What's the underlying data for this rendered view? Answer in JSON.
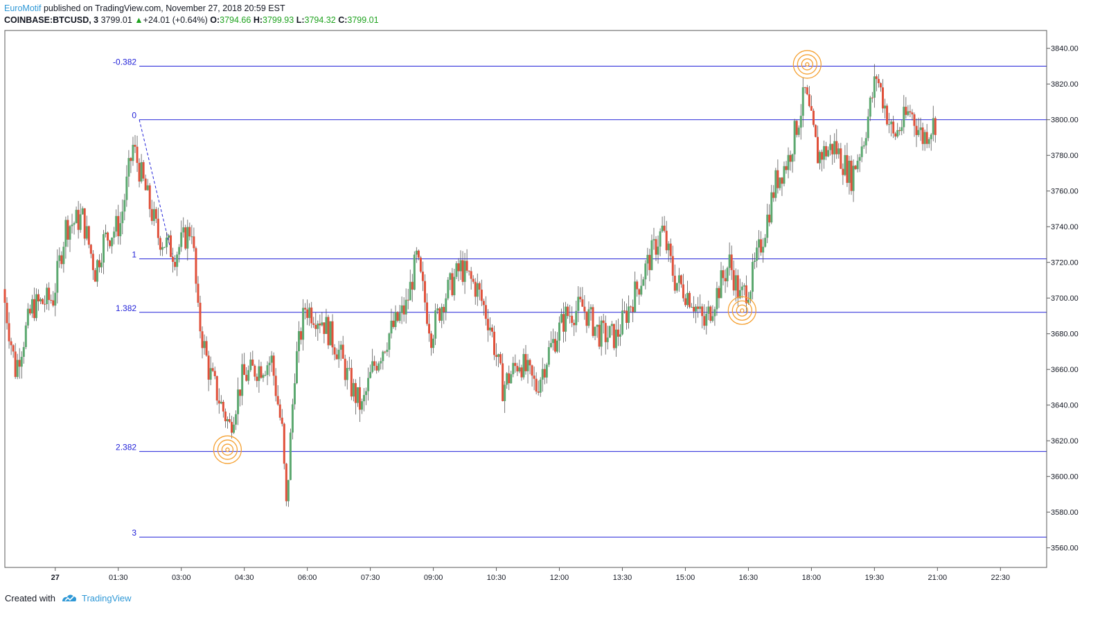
{
  "header": {
    "author": "EuroMotif",
    "published": "published on TradingView.com, November 27, 2018 20:59 EST",
    "symbol": "COINBASE:BTCUSD, 3",
    "last": "3799.01",
    "change_arrow": "▲",
    "change": "+24.01 (+0.64%)",
    "o_label": "O:",
    "o_value": "3794.66",
    "h_label": "H:",
    "h_value": "3799.93",
    "l_label": "L:",
    "l_value": "3794.32",
    "c_label": "C:",
    "c_value": "3799.01"
  },
  "footer": {
    "created_with": "Created with",
    "brand": "TradingView"
  },
  "colors": {
    "up": "#5ba86f",
    "down": "#e0503a",
    "fib": "#2020d8",
    "target": "#f5a030"
  },
  "chart_data": {
    "type": "candlestick",
    "title": "COINBASE:BTCUSD, 3",
    "x_ticks": [
      "27",
      "01:30",
      "03:00",
      "04:30",
      "06:00",
      "07:30",
      "09:00",
      "10:30",
      "12:00",
      "13:30",
      "15:00",
      "16:30",
      "18:00",
      "19:30",
      "21:00",
      "22:30"
    ],
    "x_ticks_hours": [
      0,
      1.5,
      3,
      4.5,
      6,
      7.5,
      9,
      10.5,
      12,
      13.5,
      15,
      16.5,
      18,
      19.5,
      21,
      22.5
    ],
    "y_ticks": [
      "3840.00",
      "3820.00",
      "3800.00",
      "3780.00",
      "3760.00",
      "3740.00",
      "3720.00",
      "3700.00",
      "3680.00",
      "3660.00",
      "3640.00",
      "3620.00",
      "3600.00",
      "3580.00",
      "3560.00"
    ],
    "ylim": [
      3549,
      3850
    ],
    "xlim_hours": [
      -1.2,
      23.6
    ],
    "fib_levels": [
      {
        "label": "-0.382",
        "price": 3830
      },
      {
        "label": "0",
        "price": 3800
      },
      {
        "label": "1",
        "price": 3722
      },
      {
        "label": "1.382",
        "price": 3692
      },
      {
        "label": "2.382",
        "price": 3614
      },
      {
        "label": "3",
        "price": 3566
      }
    ],
    "fib_start_hour": 2.0,
    "fib_anchor_line": {
      "from": {
        "hour": 2.0,
        "price": 3800
      },
      "to": {
        "hour": 2.8,
        "price": 3722
      }
    },
    "targets": [
      {
        "hour": 4.1,
        "price": 3615
      },
      {
        "hour": 16.35,
        "price": 3693
      },
      {
        "hour": 17.9,
        "price": 3831
      }
    ],
    "price_path": [
      {
        "hour": -1.2,
        "price": 3705
      },
      {
        "hour": -0.9,
        "price": 3660
      },
      {
        "hour": -0.5,
        "price": 3695
      },
      {
        "hour": 0.0,
        "price": 3700
      },
      {
        "hour": 0.3,
        "price": 3740
      },
      {
        "hour": 0.7,
        "price": 3745
      },
      {
        "hour": 1.0,
        "price": 3715
      },
      {
        "hour": 1.2,
        "price": 3732
      },
      {
        "hour": 1.6,
        "price": 3742
      },
      {
        "hour": 1.9,
        "price": 3785
      },
      {
        "hour": 2.2,
        "price": 3760
      },
      {
        "hour": 2.5,
        "price": 3735
      },
      {
        "hour": 2.9,
        "price": 3725
      },
      {
        "hour": 3.3,
        "price": 3740
      },
      {
        "hour": 3.45,
        "price": 3690
      },
      {
        "hour": 3.7,
        "price": 3660
      },
      {
        "hour": 4.0,
        "price": 3640
      },
      {
        "hour": 4.2,
        "price": 3628
      },
      {
        "hour": 4.5,
        "price": 3655
      },
      {
        "hour": 4.8,
        "price": 3660
      },
      {
        "hour": 5.2,
        "price": 3665
      },
      {
        "hour": 5.45,
        "price": 3625
      },
      {
        "hour": 5.55,
        "price": 3582
      },
      {
        "hour": 5.75,
        "price": 3660
      },
      {
        "hour": 6.0,
        "price": 3695
      },
      {
        "hour": 6.4,
        "price": 3688
      },
      {
        "hour": 6.8,
        "price": 3670
      },
      {
        "hour": 7.1,
        "price": 3650
      },
      {
        "hour": 7.35,
        "price": 3638
      },
      {
        "hour": 7.6,
        "price": 3660
      },
      {
        "hour": 8.0,
        "price": 3680
      },
      {
        "hour": 8.4,
        "price": 3695
      },
      {
        "hour": 8.65,
        "price": 3722
      },
      {
        "hour": 9.0,
        "price": 3680
      },
      {
        "hour": 9.3,
        "price": 3700
      },
      {
        "hour": 9.7,
        "price": 3717
      },
      {
        "hour": 10.1,
        "price": 3705
      },
      {
        "hour": 10.4,
        "price": 3685
      },
      {
        "hour": 10.7,
        "price": 3650
      },
      {
        "hour": 11.1,
        "price": 3665
      },
      {
        "hour": 11.5,
        "price": 3650
      },
      {
        "hour": 11.8,
        "price": 3670
      },
      {
        "hour": 12.2,
        "price": 3690
      },
      {
        "hour": 12.6,
        "price": 3695
      },
      {
        "hour": 13.0,
        "price": 3680
      },
      {
        "hour": 13.4,
        "price": 3678
      },
      {
        "hour": 13.8,
        "price": 3700
      },
      {
        "hour": 14.2,
        "price": 3722
      },
      {
        "hour": 14.5,
        "price": 3738
      },
      {
        "hour": 14.8,
        "price": 3710
      },
      {
        "hour": 15.2,
        "price": 3700
      },
      {
        "hour": 15.5,
        "price": 3685
      },
      {
        "hour": 15.8,
        "price": 3703
      },
      {
        "hour": 16.1,
        "price": 3720
      },
      {
        "hour": 16.35,
        "price": 3700
      },
      {
        "hour": 16.6,
        "price": 3708
      },
      {
        "hour": 16.9,
        "price": 3735
      },
      {
        "hour": 17.2,
        "price": 3765
      },
      {
        "hour": 17.5,
        "price": 3778
      },
      {
        "hour": 17.9,
        "price": 3815
      },
      {
        "hour": 18.2,
        "price": 3780
      },
      {
        "hour": 18.6,
        "price": 3785
      },
      {
        "hour": 19.0,
        "price": 3768
      },
      {
        "hour": 19.3,
        "price": 3790
      },
      {
        "hour": 19.6,
        "price": 3825
      },
      {
        "hour": 20.0,
        "price": 3790
      },
      {
        "hour": 20.4,
        "price": 3805
      },
      {
        "hour": 20.7,
        "price": 3790
      },
      {
        "hour": 21.0,
        "price": 3799
      }
    ]
  }
}
